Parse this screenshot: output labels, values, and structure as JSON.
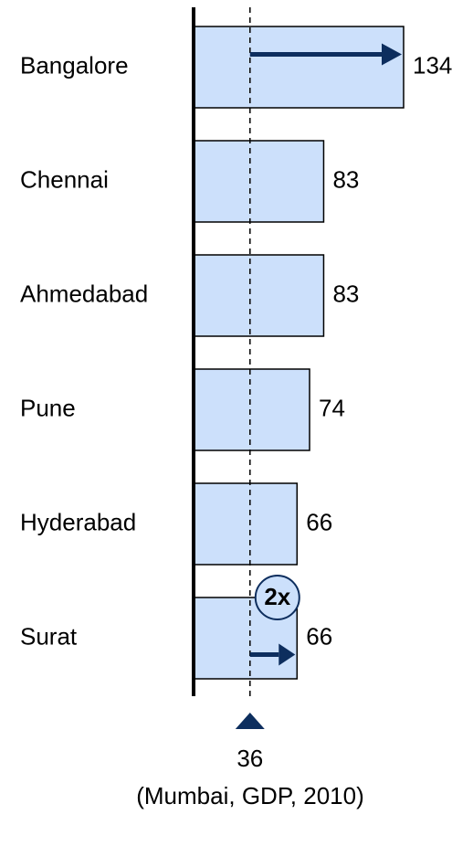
{
  "chart_data": {
    "type": "bar",
    "orientation": "horizontal",
    "categories": [
      "Bangalore",
      "Chennai",
      "Ahmedabad",
      "Pune",
      "Hyderabad",
      "Surat"
    ],
    "values": [
      134,
      83,
      83,
      74,
      66,
      66
    ],
    "color": "#cce0fb",
    "xlim": [
      0,
      134
    ],
    "reference": {
      "value": 36,
      "label": "(Mumbai, GDP, 2010)"
    },
    "annotation": "2x"
  }
}
